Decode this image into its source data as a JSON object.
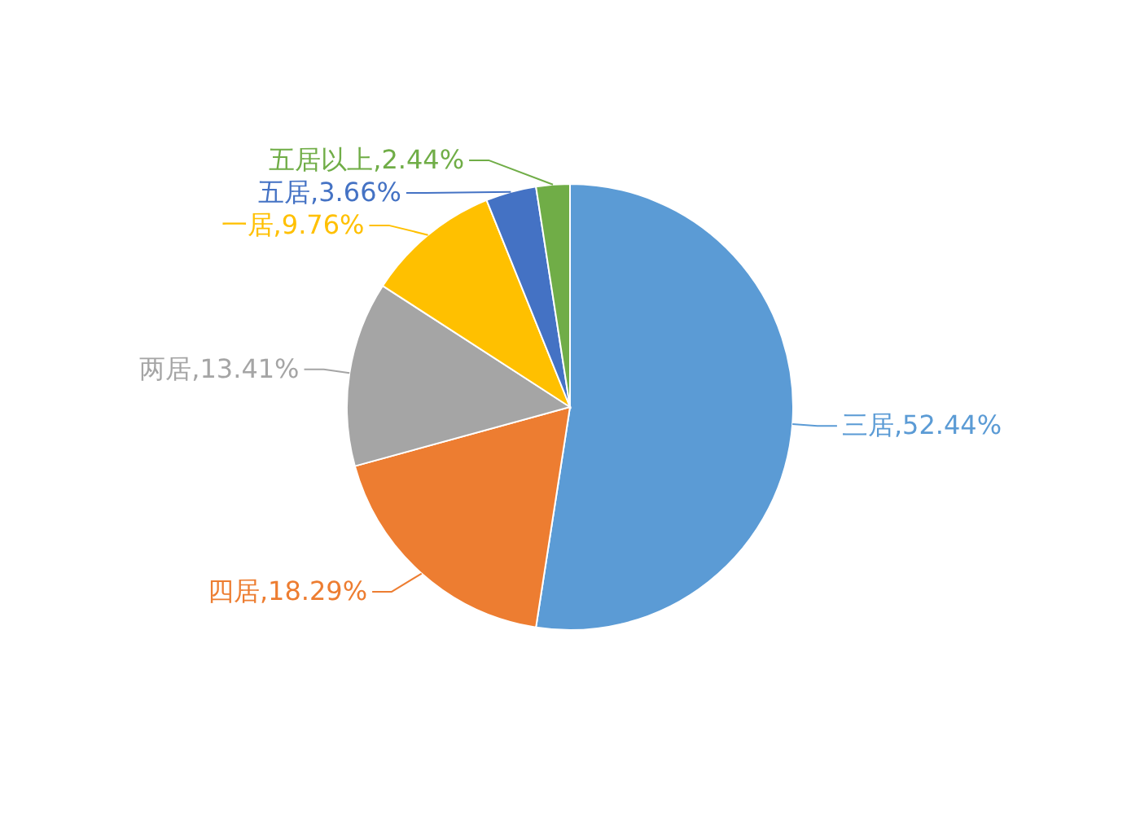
{
  "chart_data": {
    "type": "pie",
    "categories": [
      "三居",
      "四居",
      "两居",
      "一居",
      "五居",
      "五居以上"
    ],
    "values": [
      52.44,
      18.29,
      13.41,
      9.76,
      3.66,
      2.44
    ],
    "colors": [
      "#5b9bd5",
      "#ed7d31",
      "#a5a5a5",
      "#ffc000",
      "#4472c4",
      "#70ad47"
    ],
    "value_labels": [
      "52.44%",
      "18.29%",
      "13.41%",
      "9.76%",
      "3.66%",
      "2.44%"
    ]
  }
}
